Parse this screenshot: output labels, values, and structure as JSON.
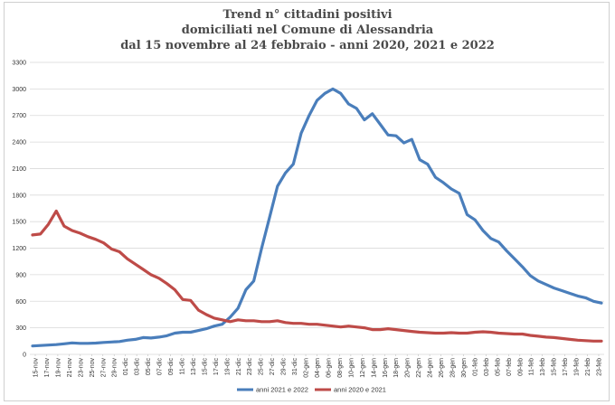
{
  "chart_data": {
    "type": "line",
    "title_lines": [
      "Trend n° cittadini positivi",
      "domiciliati nel Comune di Alessandria",
      "dal 15 novembre al 24 febbraio - anni 2020, 2021 e 2022"
    ],
    "xlabel": "",
    "ylabel": "",
    "ylim": [
      0,
      3300
    ],
    "yticks": [
      0,
      300,
      600,
      900,
      1200,
      1500,
      1800,
      2100,
      2400,
      2700,
      3000,
      3300
    ],
    "grid": true,
    "legend_position": "bottom",
    "x_tick_labels": [
      "15-nov",
      "17-nov",
      "19-nov",
      "21-nov",
      "23-nov",
      "25-nov",
      "27-nov",
      "29-nov",
      "01-dic",
      "03-dic",
      "05-dic",
      "07-dic",
      "09-dic",
      "11-dic",
      "13-dic",
      "15-dic",
      "17-dic",
      "19-dic",
      "21-dic",
      "23-dic",
      "25-dic",
      "27-dic",
      "29-dic",
      "31-dic",
      "02-gen",
      "04-gen",
      "06-gen",
      "08-gen",
      "10-gen",
      "12-gen",
      "14-gen",
      "16-gen",
      "18-gen",
      "20-gen",
      "22-gen",
      "24-gen",
      "26-gen",
      "28-gen",
      "30-gen",
      "01-feb",
      "03-feb",
      "05-feb",
      "07-feb",
      "09-feb",
      "11-feb",
      "13-feb",
      "15-feb",
      "17-feb",
      "19-feb",
      "21-feb",
      "23-feb"
    ],
    "series": [
      {
        "name": "anni 2021 e 2022",
        "color": "#4a7ebb",
        "values": [
          95,
          100,
          105,
          110,
          120,
          130,
          125,
          125,
          128,
          135,
          140,
          145,
          160,
          170,
          190,
          185,
          195,
          210,
          240,
          250,
          250,
          270,
          290,
          320,
          340,
          420,
          520,
          730,
          830,
          1200,
          1550,
          1900,
          2050,
          2150,
          2500,
          2700,
          2870,
          2950,
          3000,
          2950,
          2830,
          2780,
          2650,
          2720,
          2600,
          2480,
          2470,
          2390,
          2430,
          2200,
          2150,
          2000,
          1940,
          1870,
          1820,
          1580,
          1520,
          1400,
          1310,
          1270,
          1170,
          1080,
          990,
          890,
          830,
          790,
          750,
          720,
          690,
          660,
          640,
          600,
          580
        ],
        "values_note": "sampled every ~1.4 days"
      },
      {
        "name": "anni 2020 e 2021",
        "color": "#be4b48",
        "values": [
          1350,
          1360,
          1470,
          1620,
          1450,
          1400,
          1370,
          1330,
          1300,
          1260,
          1190,
          1160,
          1080,
          1020,
          960,
          900,
          860,
          800,
          730,
          620,
          610,
          500,
          450,
          410,
          390,
          370,
          390,
          380,
          380,
          370,
          370,
          380,
          360,
          350,
          350,
          340,
          340,
          330,
          320,
          310,
          320,
          310,
          300,
          280,
          280,
          290,
          280,
          270,
          260,
          250,
          245,
          240,
          240,
          245,
          240,
          240,
          250,
          255,
          250,
          240,
          235,
          230,
          230,
          215,
          205,
          195,
          190,
          180,
          170,
          160,
          155,
          150,
          150
        ]
      }
    ]
  }
}
